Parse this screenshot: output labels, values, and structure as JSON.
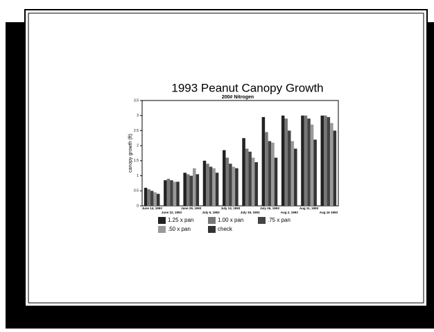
{
  "chart_data": {
    "type": "bar",
    "title": "1993 Peanut Canopy Growth",
    "subtitle": "200# Nitrogen",
    "y_label": "canopy growth (ft)",
    "categories": [
      "June 14, 1993",
      "June 22, 1993",
      "June 29, 1993",
      "July 6, 1993",
      "July 13, 1993",
      "July 19, 1993",
      "July 26, 1993",
      "Aug 2, 1993",
      "Aug 11, 1993",
      "Aug 16 1993"
    ],
    "series": [
      {
        "name": "1.25 x pan",
        "color": "#222222",
        "values": [
          0.6,
          0.85,
          1.1,
          1.5,
          1.85,
          2.25,
          2.95,
          3.0,
          3.0,
          3.0
        ]
      },
      {
        "name": "1.00 x pan",
        "color": "#777777",
        "values": [
          0.55,
          0.9,
          1.05,
          1.4,
          1.6,
          1.9,
          2.45,
          2.9,
          3.0,
          3.0
        ]
      },
      {
        "name": ".75 x pan",
        "color": "#444444",
        "values": [
          0.5,
          0.85,
          1.0,
          1.3,
          1.4,
          1.8,
          2.15,
          2.5,
          2.9,
          2.95
        ]
      },
      {
        "name": ".50 x pan",
        "color": "#999999",
        "values": [
          0.45,
          0.8,
          1.25,
          1.25,
          1.3,
          1.6,
          2.1,
          2.15,
          2.7,
          2.75
        ]
      },
      {
        "name": "check",
        "color": "#333333",
        "values": [
          0.4,
          0.8,
          1.05,
          1.1,
          1.25,
          1.45,
          1.6,
          1.9,
          2.2,
          2.5
        ]
      }
    ],
    "ylim": [
      0,
      3.5
    ],
    "yticks": [
      0,
      0.5,
      1,
      1.5,
      2,
      2.5,
      3,
      3.5
    ]
  }
}
